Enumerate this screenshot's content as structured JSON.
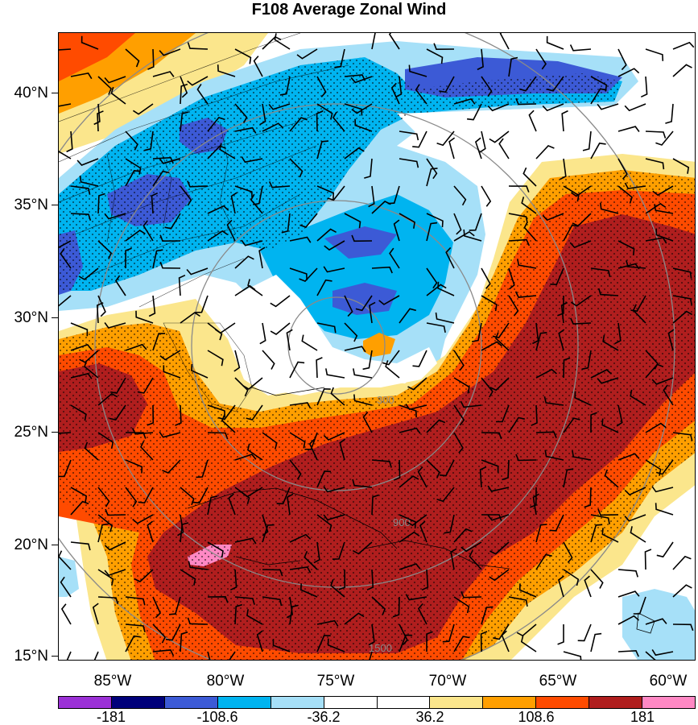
{
  "title": "F108 Average Zonal Wind",
  "latitude_labels": [
    "40°N",
    "35°N",
    "30°N",
    "25°N",
    "20°N",
    "15°N"
  ],
  "longitude_labels": [
    "85°W",
    "80°W",
    "75°W",
    "70°W",
    "65°W",
    "60°W"
  ],
  "colorbar": {
    "colors": [
      "#9b30d6",
      "#00007a",
      "#3c5ad6",
      "#00b4f0",
      "#a6e0f8",
      "#ffffff",
      "#ffffff",
      "#fbe68c",
      "#ff9f00",
      "#ff4b00",
      "#b01e1e",
      "#ff88c4"
    ],
    "labels": [
      "-181",
      "-108.6",
      "-36.2",
      "36.2",
      "108.6",
      "181"
    ]
  },
  "range_ring_labels": [
    "300",
    "900",
    "1500"
  ],
  "icons": [
    "wind-barb-icon",
    "stipple-pattern-icon",
    "range-ring-icon"
  ]
}
